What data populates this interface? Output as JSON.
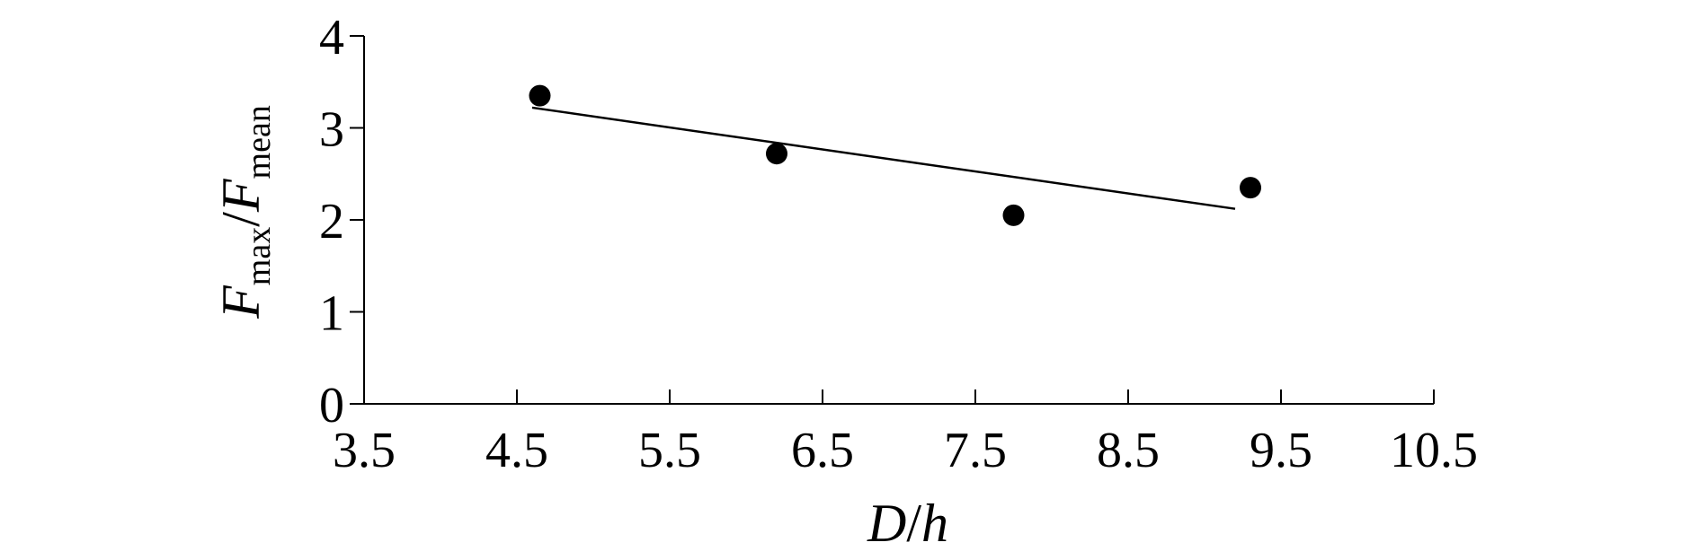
{
  "chart_data": {
    "type": "scatter",
    "title": "",
    "xlabel": {
      "main": "D",
      "sep": "/",
      "tail": "h"
    },
    "ylabel": {
      "f1": "F",
      "sub1": "max",
      "sep": "/",
      "f2": "F",
      "sub2": "mean"
    },
    "xlim": [
      3.5,
      10.5
    ],
    "ylim": [
      0,
      4
    ],
    "x_ticks": [
      3.5,
      4.5,
      5.5,
      6.5,
      7.5,
      8.5,
      9.5,
      10.5
    ],
    "x_tick_labels": [
      "3.5",
      "4.5",
      "5.5",
      "6.5",
      "7.5",
      "8.5",
      "9.5",
      "10.5"
    ],
    "y_ticks": [
      0,
      1,
      2,
      3,
      4
    ],
    "y_tick_labels": [
      "0",
      "1",
      "2",
      "3",
      "4"
    ],
    "series": [
      {
        "type": "scatter",
        "x": [
          4.65,
          6.2,
          7.75,
          9.3
        ],
        "y": [
          3.35,
          2.72,
          2.05,
          2.35
        ],
        "color": "#000000"
      },
      {
        "type": "line",
        "x": [
          4.6,
          9.2
        ],
        "y": [
          3.22,
          2.12
        ],
        "color": "#000000"
      }
    ],
    "grid": false,
    "legend": "none"
  }
}
